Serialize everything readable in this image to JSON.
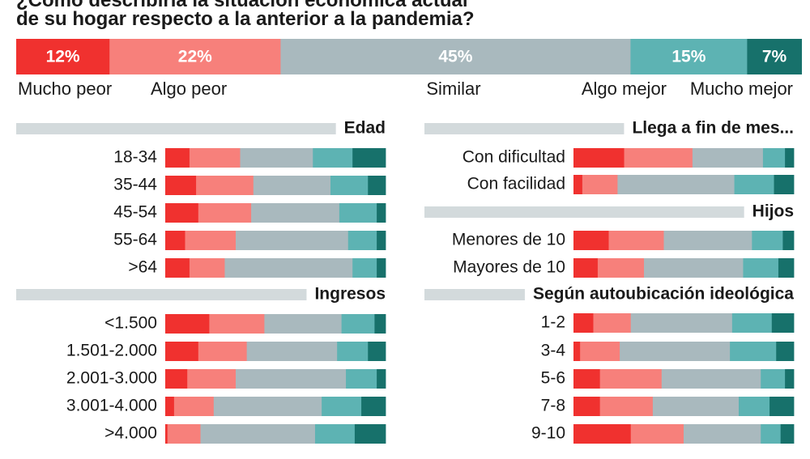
{
  "title": {
    "line1": "¿Cómo describiría la situación económica actual",
    "line2": "de su hogar respecto a la anterior a la pandemia?"
  },
  "colors": {
    "mucho_peor": "#f0312f",
    "algo_peor": "#f7807b",
    "similar": "#a9b9be",
    "algo_mejor": "#5db3b3",
    "mucho_mejor": "#17716b",
    "section_bar": "#d3dadc"
  },
  "chart_data": {
    "type": "bar",
    "subtype": "100%-stacked-horizontal",
    "categories_order": [
      "Mucho peor",
      "Algo peor",
      "Similar",
      "Algo mejor",
      "Mucho mejor"
    ],
    "overall": {
      "values": [
        12,
        22,
        45,
        15,
        7
      ],
      "labels": [
        "12%",
        "22%",
        "45%",
        "15%",
        "7%"
      ]
    },
    "groups": [
      {
        "title": "Edad",
        "column": "left",
        "rows": [
          {
            "label": "18-34",
            "values": [
              11,
              23,
              33,
              18,
              15
            ]
          },
          {
            "label": "35-44",
            "values": [
              14,
              26,
              35,
              17,
              8
            ]
          },
          {
            "label": "45-54",
            "values": [
              15,
              24,
              40,
              17,
              4
            ]
          },
          {
            "label": "55-64",
            "values": [
              9,
              23,
              51,
              13,
              4
            ]
          },
          {
            "label": ">64",
            "values": [
              11,
              16,
              58,
              11,
              4
            ]
          }
        ]
      },
      {
        "title": "Ingresos",
        "column": "left",
        "rows": [
          {
            "label": "<1.500",
            "values": [
              20,
              25,
              35,
              15,
              5
            ]
          },
          {
            "label": "1.501-2.000",
            "values": [
              15,
              22,
              41,
              14,
              8
            ]
          },
          {
            "label": "2.001-3.000",
            "values": [
              10,
              22,
              50,
              14,
              4
            ]
          },
          {
            "label": "3.001-4.000",
            "values": [
              4,
              18,
              49,
              18,
              11
            ]
          },
          {
            "label": ">4.000",
            "values": [
              1,
              15,
              52,
              18,
              14
            ]
          }
        ]
      },
      {
        "title": "Llega a fin de mes...",
        "column": "right",
        "rows": [
          {
            "label": "Con dificultad",
            "values": [
              23,
              31,
              32,
              10,
              4
            ]
          },
          {
            "label": "Con facilidad",
            "values": [
              4,
              16,
              53,
              18,
              9
            ]
          }
        ]
      },
      {
        "title": "Hijos",
        "column": "right",
        "rows": [
          {
            "label": "Menores de 10",
            "values": [
              16,
              25,
              40,
              14,
              5
            ]
          },
          {
            "label": "Mayores de 10",
            "values": [
              11,
              21,
              45,
              16,
              7
            ]
          }
        ]
      },
      {
        "title": "Según autoubicación ideológica",
        "column": "right",
        "rows": [
          {
            "label": "1-2",
            "values": [
              9,
              17,
              46,
              18,
              10
            ]
          },
          {
            "label": "3-4",
            "values": [
              3,
              18,
              50,
              21,
              8
            ]
          },
          {
            "label": "5-6",
            "values": [
              12,
              28,
              45,
              11,
              4
            ]
          },
          {
            "label": "7-8",
            "values": [
              12,
              24,
              39,
              14,
              11
            ]
          },
          {
            "label": "9-10",
            "values": [
              26,
              24,
              35,
              9,
              6
            ]
          }
        ]
      }
    ]
  }
}
